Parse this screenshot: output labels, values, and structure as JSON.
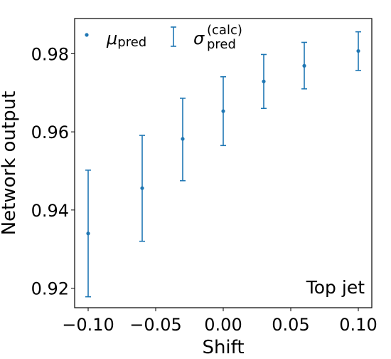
{
  "chart_data": {
    "type": "scatter",
    "title": "",
    "xlabel": "Shift",
    "ylabel": "Network output",
    "xlim": [
      -0.11,
      0.11
    ],
    "ylim": [
      0.915,
      0.989
    ],
    "x_ticks": [
      -0.1,
      -0.05,
      0.0,
      0.05,
      0.1
    ],
    "x_tick_labels": [
      "−0.10",
      "−0.05",
      "0.00",
      "0.05",
      "0.10"
    ],
    "y_ticks": [
      0.92,
      0.94,
      0.96,
      0.98
    ],
    "y_tick_labels": [
      "0.92",
      "0.94",
      "0.96",
      "0.98"
    ],
    "grid": false,
    "legend_position": "top-left",
    "annotation": "Top jet",
    "color": "#1f77b4",
    "series": [
      {
        "name": "μ_pred",
        "legend_symbol": "μ",
        "legend_subscript": "pred",
        "marker": "point",
        "x": [
          -0.1,
          -0.06,
          -0.03,
          0.0,
          0.03,
          0.06,
          0.1
        ],
        "y": [
          0.934,
          0.9456,
          0.9582,
          0.9653,
          0.9729,
          0.9769,
          0.9807
        ]
      },
      {
        "name": "σ_pred^(calc)",
        "legend_symbol": "σ",
        "legend_subscript": "pred",
        "legend_superscript": "(calc)",
        "marker": "errorbar",
        "x": [
          -0.1,
          -0.06,
          -0.03,
          0.0,
          0.03,
          0.06,
          0.1
        ],
        "y_low": [
          0.9178,
          0.932,
          0.9475,
          0.9565,
          0.966,
          0.971,
          0.9757
        ],
        "y_high": [
          0.9502,
          0.9591,
          0.9686,
          0.9741,
          0.9798,
          0.9829,
          0.9856
        ]
      }
    ]
  }
}
